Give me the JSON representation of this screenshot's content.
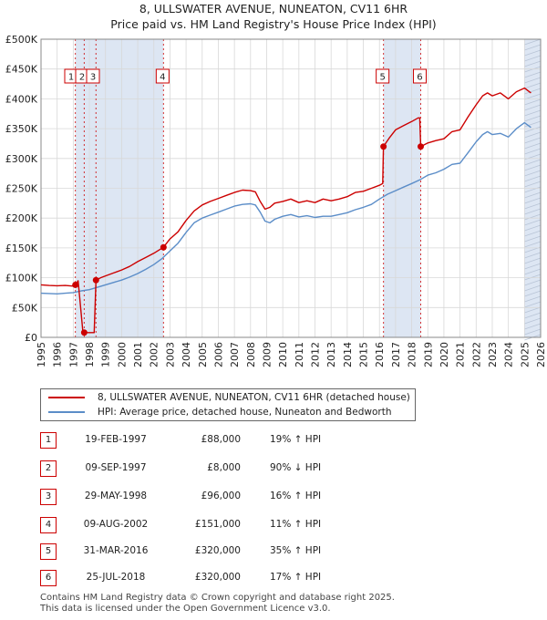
{
  "title_line1": "8, ULLSWATER AVENUE, NUNEATON, CV11 6HR",
  "title_line2": "Price paid vs. HM Land Registry's House Price Index (HPI)",
  "colors": {
    "property": "#cc0000",
    "hpi": "#5b8dc8",
    "shade": "#dde6f3",
    "vline": "#cc0000"
  },
  "chart_data": {
    "type": "line",
    "title": "8, ULLSWATER AVENUE, NUNEATON, CV11 6HR",
    "subtitle": "Price paid vs. HM Land Registry's House Price Index (HPI)",
    "xlabel": "",
    "ylabel": "",
    "xlim": [
      1995,
      2026
    ],
    "ylim": [
      0,
      500000
    ],
    "x_ticks": [
      1995,
      1996,
      1997,
      1998,
      1999,
      2000,
      2001,
      2002,
      2003,
      2004,
      2005,
      2006,
      2007,
      2008,
      2009,
      2010,
      2011,
      2012,
      2013,
      2014,
      2015,
      2016,
      2017,
      2018,
      2019,
      2020,
      2021,
      2022,
      2023,
      2024,
      2025,
      2026
    ],
    "y_ticks": [
      0,
      50000,
      100000,
      150000,
      200000,
      250000,
      300000,
      350000,
      400000,
      450000,
      500000
    ],
    "y_tick_labels": [
      "£0",
      "£50K",
      "£100K",
      "£150K",
      "£200K",
      "£250K",
      "£300K",
      "£350K",
      "£400K",
      "£450K",
      "£500K"
    ],
    "grid": true,
    "legend_position": "below",
    "shaded_regions": [
      [
        1997.13,
        2002.6
      ],
      [
        2016.25,
        2018.56
      ],
      [
        2025.0,
        2026.0
      ]
    ],
    "series": [
      {
        "name": "8, ULLSWATER AVENUE, NUNEATON, CV11 6HR (detached house)",
        "color": "#cc0000",
        "x": [
          1995.0,
          1995.5,
          1996.0,
          1996.5,
          1997.0,
          1997.13,
          1997.3,
          1997.6,
          1997.68,
          1998.0,
          1998.3,
          1998.41,
          1998.7,
          1999.0,
          1999.5,
          2000.0,
          2000.5,
          2001.0,
          2001.5,
          2002.0,
          2002.6,
          2003.0,
          2003.5,
          2004.0,
          2004.5,
          2005.0,
          2005.5,
          2006.0,
          2006.5,
          2007.0,
          2007.5,
          2008.0,
          2008.3,
          2008.6,
          2008.9,
          2009.2,
          2009.5,
          2010.0,
          2010.5,
          2011.0,
          2011.5,
          2012.0,
          2012.5,
          2013.0,
          2013.5,
          2014.0,
          2014.5,
          2015.0,
          2015.5,
          2016.0,
          2016.2,
          2016.25,
          2016.6,
          2017.0,
          2017.5,
          2018.0,
          2018.4,
          2018.5,
          2018.56,
          2019.0,
          2019.5,
          2020.0,
          2020.5,
          2021.0,
          2021.5,
          2022.0,
          2022.4,
          2022.7,
          2023.0,
          2023.5,
          2024.0,
          2024.5,
          2025.0,
          2025.4
        ],
        "values": [
          88000,
          87000,
          86500,
          87000,
          86000,
          88000,
          95000,
          8000,
          8000,
          8000,
          8000,
          96000,
          100000,
          103000,
          108000,
          113000,
          119000,
          127000,
          134000,
          141000,
          151000,
          165000,
          177000,
          196000,
          212000,
          222000,
          228000,
          233000,
          238000,
          243000,
          247000,
          246000,
          244000,
          228000,
          215000,
          218000,
          225000,
          228000,
          232000,
          226000,
          229000,
          226000,
          232000,
          229000,
          232000,
          236000,
          243000,
          245000,
          250000,
          255000,
          258000,
          320000,
          334000,
          348000,
          355000,
          362000,
          368000,
          368000,
          320000,
          326000,
          330000,
          333000,
          345000,
          348000,
          370000,
          390000,
          405000,
          410000,
          405000,
          410000,
          400000,
          412000,
          418000,
          410000
        ]
      },
      {
        "name": "HPI: Average price, detached house, Nuneaton and Bedworth",
        "color": "#5b8dc8",
        "x": [
          1995.0,
          1995.5,
          1996.0,
          1996.5,
          1997.0,
          1997.5,
          1998.0,
          1998.5,
          1999.0,
          1999.5,
          2000.0,
          2000.5,
          2001.0,
          2001.5,
          2002.0,
          2002.5,
          2003.0,
          2003.5,
          2004.0,
          2004.5,
          2005.0,
          2005.5,
          2006.0,
          2006.5,
          2007.0,
          2007.5,
          2008.0,
          2008.3,
          2008.6,
          2008.9,
          2009.2,
          2009.5,
          2010.0,
          2010.5,
          2011.0,
          2011.5,
          2012.0,
          2012.5,
          2013.0,
          2013.5,
          2014.0,
          2014.5,
          2015.0,
          2015.5,
          2016.0,
          2016.5,
          2017.0,
          2017.5,
          2018.0,
          2018.5,
          2019.0,
          2019.5,
          2020.0,
          2020.5,
          2021.0,
          2021.5,
          2022.0,
          2022.4,
          2022.7,
          2023.0,
          2023.5,
          2024.0,
          2024.5,
          2025.0,
          2025.4
        ],
        "values": [
          74000,
          73500,
          73000,
          74000,
          75000,
          78000,
          80000,
          84000,
          88000,
          92000,
          96000,
          101000,
          107000,
          114000,
          122000,
          132000,
          145000,
          158000,
          176000,
          192000,
          200000,
          205000,
          210000,
          215000,
          220000,
          223000,
          224000,
          222000,
          210000,
          195000,
          192000,
          198000,
          203000,
          206000,
          202000,
          204000,
          201000,
          203000,
          203000,
          206000,
          209000,
          214000,
          218000,
          223000,
          232000,
          240000,
          246000,
          252000,
          258000,
          264000,
          272000,
          276000,
          282000,
          290000,
          292000,
          310000,
          328000,
          340000,
          345000,
          340000,
          342000,
          336000,
          350000,
          360000,
          352000
        ]
      }
    ],
    "markers": [
      {
        "label": "1",
        "x": 1997.13,
        "value": 88000
      },
      {
        "label": "2",
        "x": 1997.68,
        "value": 8000
      },
      {
        "label": "3",
        "x": 1998.41,
        "value": 96000
      },
      {
        "label": "4",
        "x": 2002.6,
        "value": 151000
      },
      {
        "label": "5",
        "x": 2016.25,
        "value": 320000
      },
      {
        "label": "6",
        "x": 2018.56,
        "value": 320000
      }
    ]
  },
  "legend": {
    "property_label": "8, ULLSWATER AVENUE, NUNEATON, CV11 6HR (detached house)",
    "hpi_label": "HPI: Average price, detached house, Nuneaton and Bedworth"
  },
  "transactions": [
    {
      "num": "1",
      "date": "19-FEB-1997",
      "price": "£88,000",
      "hpi": "19% ↑ HPI"
    },
    {
      "num": "2",
      "date": "09-SEP-1997",
      "price": "£8,000",
      "hpi": "90% ↓ HPI"
    },
    {
      "num": "3",
      "date": "29-MAY-1998",
      "price": "£96,000",
      "hpi": "16% ↑ HPI"
    },
    {
      "num": "4",
      "date": "09-AUG-2002",
      "price": "£151,000",
      "hpi": "11% ↑ HPI"
    },
    {
      "num": "5",
      "date": "31-MAR-2016",
      "price": "£320,000",
      "hpi": "35% ↑ HPI"
    },
    {
      "num": "6",
      "date": "25-JUL-2018",
      "price": "£320,000",
      "hpi": "17% ↑ HPI"
    }
  ],
  "footer": {
    "line1": "Contains HM Land Registry data © Crown copyright and database right 2025.",
    "line2": "This data is licensed under the Open Government Licence v3.0."
  }
}
